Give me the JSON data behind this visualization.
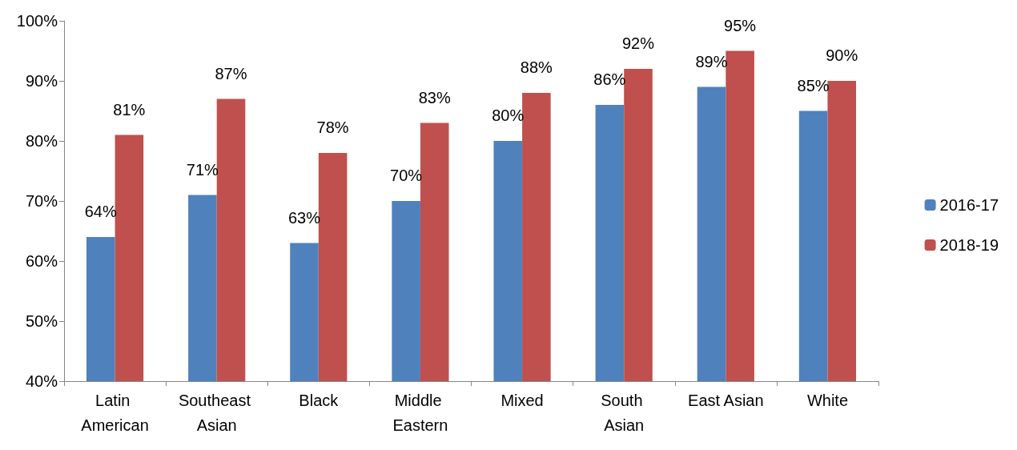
{
  "chart_data": {
    "type": "bar",
    "categories": [
      "Latin American",
      "Southeast Asian",
      "Black",
      "Middle Eastern",
      "Mixed",
      "South Asian",
      "East Asian",
      "White"
    ],
    "series": [
      {
        "name": "2016-17",
        "color": "#4f81bd",
        "values": [
          64,
          71,
          63,
          70,
          80,
          86,
          89,
          85
        ],
        "value_labels": [
          "64%",
          "71%",
          "63%",
          "70%",
          "80%",
          "86%",
          "89%",
          "85%"
        ]
      },
      {
        "name": "2018-19",
        "color": "#c0504d",
        "values": [
          81,
          87,
          78,
          83,
          88,
          92,
          95,
          90
        ],
        "value_labels": [
          "81%",
          "87%",
          "78%",
          "83%",
          "88%",
          "92%",
          "95%",
          "90%"
        ]
      }
    ],
    "ylim": [
      40,
      100
    ],
    "yticks": [
      {
        "value": 40,
        "label": "40%"
      },
      {
        "value": 50,
        "label": "50%"
      },
      {
        "value": 60,
        "label": "60%"
      },
      {
        "value": 70,
        "label": "70%"
      },
      {
        "value": 80,
        "label": "80%"
      },
      {
        "value": 90,
        "label": "90%"
      },
      {
        "value": 100,
        "label": "100%"
      }
    ],
    "grid": false,
    "legend": "right"
  }
}
